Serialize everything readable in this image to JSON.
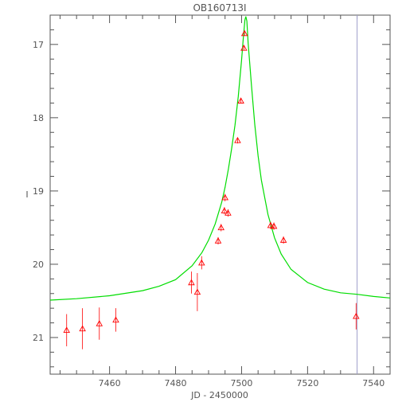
{
  "chart_data": {
    "type": "scatter",
    "title": "OB160713I",
    "xlabel": "JD - 2450000",
    "ylabel": "I",
    "xlim": [
      7442,
      7545
    ],
    "ylim": [
      21.5,
      16.6
    ],
    "y_inverted": true,
    "x_ticks": [
      7460,
      7480,
      7500,
      7520,
      7540
    ],
    "x_tick_labels": [
      "7460",
      "7480",
      "7500",
      "7520",
      "7540"
    ],
    "y_ticks": [
      17,
      18,
      19,
      20,
      21
    ],
    "y_tick_labels": [
      "17",
      "18",
      "19",
      "20",
      "21"
    ],
    "grid": false,
    "observations": {
      "color": "#ff0000",
      "marker": "triangle",
      "points": [
        {
          "x": 7447.0,
          "y": 20.9,
          "err": 0.22
        },
        {
          "x": 7451.8,
          "y": 20.88,
          "err": 0.28
        },
        {
          "x": 7456.9,
          "y": 20.81,
          "err": 0.22
        },
        {
          "x": 7461.9,
          "y": 20.76,
          "err": 0.16
        },
        {
          "x": 7484.8,
          "y": 20.25,
          "err": 0.15
        },
        {
          "x": 7486.6,
          "y": 20.38,
          "err": 0.26
        },
        {
          "x": 7487.9,
          "y": 19.98,
          "err": 0.09
        },
        {
          "x": 7492.9,
          "y": 19.68,
          "err": 0.05
        },
        {
          "x": 7493.8,
          "y": 19.5,
          "err": 0.05
        },
        {
          "x": 7494.8,
          "y": 19.27,
          "err": 0.05
        },
        {
          "x": 7495.0,
          "y": 19.09,
          "err": 0.05
        },
        {
          "x": 7495.9,
          "y": 19.3,
          "err": 0.05
        },
        {
          "x": 7498.8,
          "y": 18.31,
          "err": 0.04
        },
        {
          "x": 7499.8,
          "y": 17.77,
          "err": 0.03
        },
        {
          "x": 7500.7,
          "y": 17.05,
          "err": 0.03
        },
        {
          "x": 7500.9,
          "y": 16.85,
          "err": 0.03
        },
        {
          "x": 7508.8,
          "y": 19.47,
          "err": 0.05
        },
        {
          "x": 7509.8,
          "y": 19.48,
          "err": 0.05
        },
        {
          "x": 7512.7,
          "y": 19.67,
          "err": 0.05
        },
        {
          "x": 7534.7,
          "y": 20.71,
          "err": 0.18
        }
      ]
    },
    "model": {
      "color": "#00dd00",
      "x": [
        7442,
        7450,
        7460,
        7470,
        7475,
        7480,
        7485,
        7488,
        7490,
        7492,
        7494,
        7495,
        7496,
        7497,
        7498,
        7499,
        7500,
        7500.5,
        7501,
        7501.3,
        7501.6,
        7502,
        7503,
        7504,
        7505,
        7506,
        7508,
        7510,
        7512,
        7515,
        7520,
        7525,
        7530,
        7535,
        7540,
        7545
      ],
      "y": [
        20.49,
        20.47,
        20.43,
        20.36,
        20.3,
        20.21,
        20.02,
        19.84,
        19.67,
        19.45,
        19.15,
        18.95,
        18.7,
        18.42,
        18.1,
        17.71,
        17.22,
        16.93,
        16.67,
        16.62,
        16.68,
        16.98,
        17.56,
        18.09,
        18.52,
        18.85,
        19.32,
        19.64,
        19.86,
        20.07,
        20.25,
        20.34,
        20.39,
        20.41,
        20.44,
        20.46
      ]
    },
    "vertical_line": {
      "x": 7535,
      "color": "#a0a0cc"
    }
  }
}
